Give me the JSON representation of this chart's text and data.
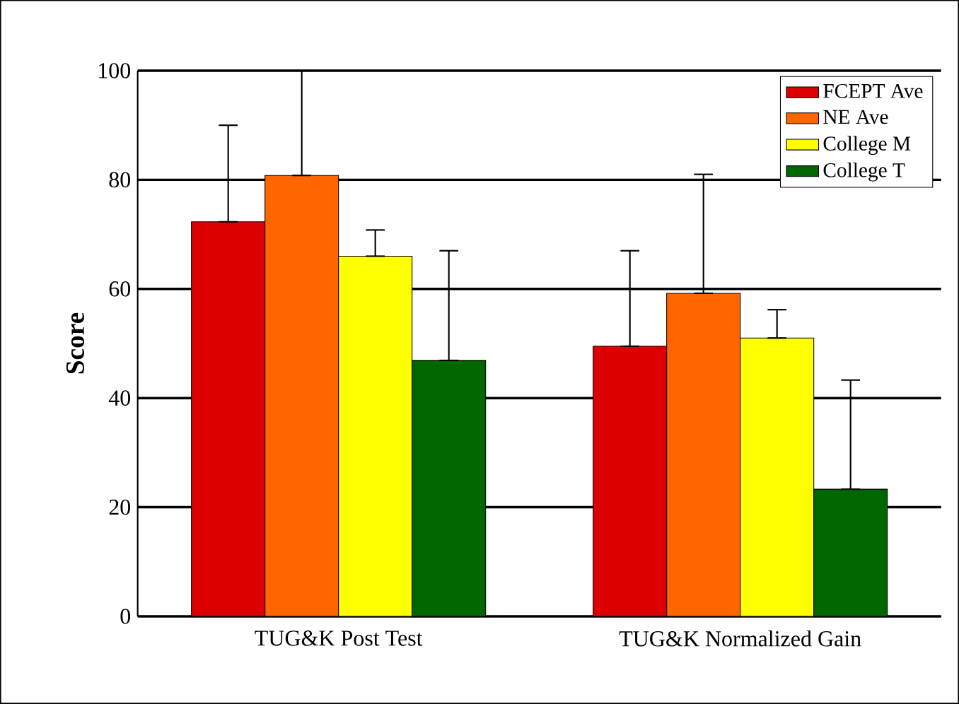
{
  "chart_data": {
    "type": "bar",
    "ylabel": "Score",
    "categories": [
      "TUG&K Post Test",
      "TUG&K Normalized Gain"
    ],
    "series": [
      {
        "name": "FCEPT Ave",
        "color": "#dd0000",
        "values": [
          72.3,
          49.5
        ],
        "errors": [
          [
            72.3,
            90
          ],
          [
            49.5,
            67
          ]
        ]
      },
      {
        "name": "NE Ave",
        "color": "#ff6600",
        "values": [
          80.8,
          59.2
        ],
        "errors": [
          [
            80.8,
            100
          ],
          [
            59.2,
            81
          ]
        ]
      },
      {
        "name": "College M",
        "color": "#ffff00",
        "values": [
          66,
          51
        ],
        "errors": [
          [
            66,
            70.8
          ],
          [
            51,
            56.2
          ]
        ]
      },
      {
        "name": "College T",
        "color": "#006600",
        "values": [
          46.9,
          23.3
        ],
        "errors": [
          [
            46.9,
            67
          ],
          [
            23.3,
            43.3
          ]
        ]
      }
    ],
    "ylim": [
      0,
      100
    ],
    "yticks": [
      0,
      20,
      40,
      60,
      80,
      100
    ],
    "grid": "y",
    "legend": "top right"
  }
}
